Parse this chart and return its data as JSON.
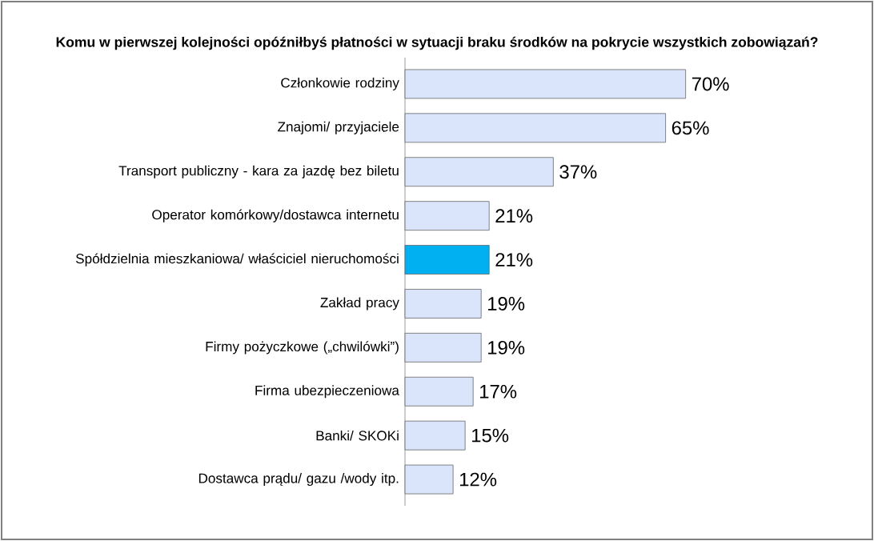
{
  "chart_data": {
    "type": "bar",
    "orientation": "horizontal",
    "title": "Komu w pierwszej kolejności opóźniłbyś płatności w sytuacji braku środków na pokrycie wszystkich zobowiązań?",
    "categories": [
      "Członkowie rodziny",
      "Znajomi/ przyjaciele",
      "Transport publiczny  - kara za jazdę bez biletu",
      "Operator komórkowy/dostawca internetu",
      "Spółdzielnia mieszkaniowa/ właściciel nieruchomości",
      "Zakład pracy",
      "Firmy pożyczkowe („chwilówki”)",
      "Firma ubezpieczeniowa",
      "Banki/ SKOKi",
      "Dostawca prądu/ gazu /wody itp."
    ],
    "values": [
      70,
      65,
      37,
      21,
      21,
      19,
      19,
      17,
      15,
      12
    ],
    "value_labels": [
      "70%",
      "65%",
      "37%",
      "21%",
      "21%",
      "19%",
      "19%",
      "17%",
      "15%",
      "12%"
    ],
    "colors": [
      "#dae5fb",
      "#dae5fb",
      "#dae5fb",
      "#dae5fb",
      "#00b0f0",
      "#dae5fb",
      "#dae5fb",
      "#dae5fb",
      "#dae5fb",
      "#dae5fb"
    ],
    "data_labels": false
  }
}
